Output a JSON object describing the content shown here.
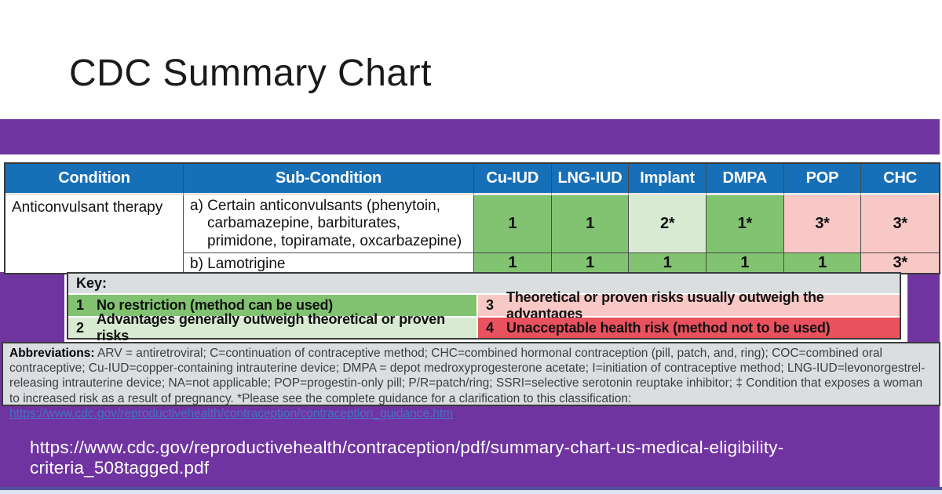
{
  "slide": {
    "title": "CDC Summary Chart",
    "footer_url": "https://www.cdc.gov/reproductivehealth/contraception/pdf/summary-chart-us-medical-eligibility-criteria_508tagged.pdf"
  },
  "colors": {
    "accent_purple": "#7034A0",
    "header_blue": "#176FB7",
    "green": "#82C372",
    "light_green": "#D8EBD2",
    "pink": "#F8C8C6",
    "red": "#E9515F",
    "key_gray": "#DBDEE1",
    "link_blue": "#4472C4"
  },
  "chart_data": {
    "type": "table",
    "title": "CDC Summary Chart",
    "columns": [
      "Condition",
      "Sub-Condition",
      "Cu-IUD",
      "LNG-IUD",
      "Implant",
      "DMPA",
      "POP",
      "CHC"
    ],
    "rows": [
      [
        "Anticonvulsant therapy",
        "a) Certain anticonvulsants (phenytoin, carbamazepine, barbiturates, primidone, topiramate, oxcarbazepine)",
        "1",
        "1",
        "2*",
        "1*",
        "3*",
        "3*"
      ],
      [
        "Anticonvulsant therapy",
        "b) Lamotrigine",
        "1",
        "1",
        "1",
        "1",
        "1",
        "3*"
      ]
    ]
  },
  "table": {
    "headers": [
      "Condition",
      "Sub-Condition",
      "Cu-IUD",
      "LNG-IUD",
      "Implant",
      "DMPA",
      "POP",
      "CHC"
    ],
    "condition": "Anticonvulsant therapy",
    "rows": [
      {
        "sub_condition": "a) Certain anticonvulsants (phenytoin, carbamazepine, barbiturates, primidone, topiramate, oxcarbazepine)",
        "values": [
          {
            "text": "1",
            "bg": "#82C372"
          },
          {
            "text": "1",
            "bg": "#82C372"
          },
          {
            "text": "2*",
            "bg": "#D8EBD2"
          },
          {
            "text": "1*",
            "bg": "#82C372"
          },
          {
            "text": "3*",
            "bg": "#F8C8C6"
          },
          {
            "text": "3*",
            "bg": "#F8C8C6"
          }
        ]
      },
      {
        "sub_condition": "b) Lamotrigine",
        "values": [
          {
            "text": "1",
            "bg": "#82C372"
          },
          {
            "text": "1",
            "bg": "#82C372"
          },
          {
            "text": "1",
            "bg": "#82C372"
          },
          {
            "text": "1",
            "bg": "#82C372"
          },
          {
            "text": "1",
            "bg": "#82C372"
          },
          {
            "text": "3*",
            "bg": "#F8C8C6"
          }
        ]
      }
    ]
  },
  "key": {
    "title": "Key:",
    "entries": [
      {
        "num": "1",
        "label": "No restriction (method can be used)",
        "bg": "#82C372"
      },
      {
        "num": "2",
        "label": "Advantages generally outweigh theoretical or proven risks",
        "bg": "#D8EBD2"
      },
      {
        "num": "3",
        "label": "Theoretical or proven risks usually outweigh the advantages",
        "bg": "#F8C8C6"
      },
      {
        "num": "4",
        "label": "Unacceptable health risk (method not to be used)",
        "bg": "#E9515F"
      }
    ]
  },
  "abbreviations": {
    "label": "Abbreviations:",
    "text_before_link": " ARV = antiretroviral; C=continuation of contraceptive method; CHC=combined hormonal contraception (pill, patch, and, ring); COC=combined oral contraceptive; Cu-IUD=copper-containing intrauterine device; DMPA = depot medroxyprogesterone acetate; I=initiation of contraceptive method; LNG-IUD=levonorgestrel-releasing intrauterine device; NA=not applicable; POP=progestin-only pill; P/R=patch/ring; SSRI=selective serotonin reuptake inhibitor;  ‡ Condition that exposes a woman to increased risk as a result of pregnancy. *Please see the complete guidance for a clarification to this classification: ",
    "link": "https://www.cdc.gov/reproductivehealth/contraception/contraception_guidance.htm",
    "text_after_link": "."
  }
}
